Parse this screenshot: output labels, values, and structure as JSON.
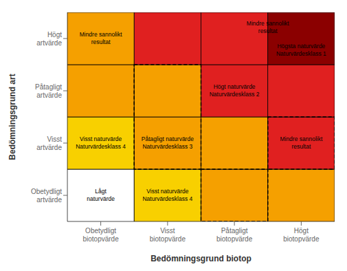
{
  "chart_data": {
    "type": "heatmap",
    "x_label": "Bedömningsgrund biotop",
    "y_label": "Bedömningsgrund art",
    "x_categories": [
      "Obetydligt\nbiotopvärde",
      "Visst\nbiotopvärde",
      "Påtagligt\nbiotopvärde",
      "Högt\nbiotopvärde"
    ],
    "y_categories": [
      "Obetydligt\nartvärde",
      "Visst\nartvärde",
      "Påtagligt\nartvärde",
      "Högt\nartvärde"
    ],
    "colors": [
      [
        "#ffffff",
        "#f8d000",
        "#f5a000",
        "#f5a000"
      ],
      [
        "#f8d000",
        "#f5a000",
        "#f5a000",
        "#e02020"
      ],
      [
        "#f5a000",
        "#f5a000",
        "#e02020",
        "#e02020"
      ],
      [
        "#f5a000",
        "#e02020",
        "#e02020",
        "#8b0000"
      ]
    ],
    "cell_labels": [
      [
        "Lågt\nnaturvärde",
        "Visst naturvärde\nNaturvärdesklass 4",
        null,
        null
      ],
      [
        "Visst naturvärde\nNaturvärdesklass 4",
        "Påtagligt naturvärde\nNaturvärdesklass 3",
        null,
        "Mindre sannolikt\nresultat"
      ],
      [
        null,
        null,
        "Högt naturvärde\nNaturvärdesklass 2",
        null
      ],
      [
        "Mindre sannolikt\nresultat",
        null,
        null,
        "Högsta naturvärde\nNaturvärdesklass 1"
      ]
    ],
    "merged_labels": [
      {
        "row": 3,
        "col": 2,
        "colspan": 2,
        "rowspan": 1,
        "text": "Mindre sannolikt\nresultat"
      }
    ],
    "dashed_boxes": [
      {
        "col": 1,
        "row": 1,
        "colspan": 1,
        "rowspan": 2
      },
      {
        "col": 2,
        "row": 0,
        "colspan": 1,
        "rowspan": 1
      },
      {
        "col": 3,
        "row": 1,
        "colspan": 1,
        "rowspan": 1
      }
    ]
  }
}
